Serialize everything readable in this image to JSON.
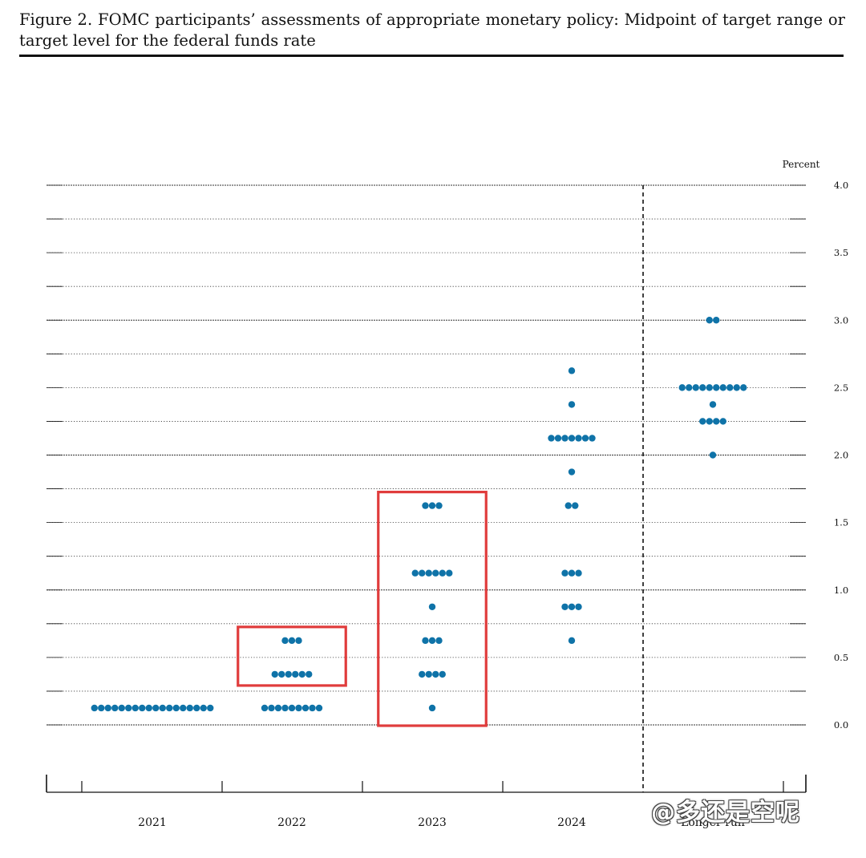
{
  "figure": {
    "title": "Figure 2.  FOMC participants’ assessments of appropriate monetary policy: Midpoint of target range or target level for the federal funds rate"
  },
  "watermark": "@多还是空呢",
  "colors": {
    "dot": "#0f73a8",
    "highlight_box": "#e03c3c",
    "axis": "#111111",
    "grid": "#333333"
  },
  "chart_data": {
    "type": "scatter",
    "style": "dot-plot",
    "unit_label": "Percent",
    "categories": [
      "2021",
      "2022",
      "2023",
      "2024",
      "Longer run"
    ],
    "ylim": [
      0,
      4.0
    ],
    "yticks": [
      "0.0",
      "0.5",
      "1.0",
      "1.5",
      "2.0",
      "2.5",
      "3.0",
      "3.5",
      "4.0"
    ],
    "grid": true,
    "longer_run_separator": true,
    "points": [
      {
        "category": "2021",
        "dots": [
          {
            "y": 0.125,
            "count": 18
          }
        ]
      },
      {
        "category": "2022",
        "dots": [
          {
            "y": 0.125,
            "count": 9
          },
          {
            "y": 0.375,
            "count": 6
          },
          {
            "y": 0.625,
            "count": 3
          }
        ]
      },
      {
        "category": "2023",
        "dots": [
          {
            "y": 0.125,
            "count": 1
          },
          {
            "y": 0.375,
            "count": 4
          },
          {
            "y": 0.625,
            "count": 3
          },
          {
            "y": 0.875,
            "count": 1
          },
          {
            "y": 1.125,
            "count": 6
          },
          {
            "y": 1.625,
            "count": 3
          }
        ]
      },
      {
        "category": "2024",
        "dots": [
          {
            "y": 0.625,
            "count": 1
          },
          {
            "y": 0.875,
            "count": 3
          },
          {
            "y": 1.125,
            "count": 3
          },
          {
            "y": 1.625,
            "count": 2
          },
          {
            "y": 1.875,
            "count": 1
          },
          {
            "y": 2.125,
            "count": 7
          },
          {
            "y": 2.375,
            "count": 1
          },
          {
            "y": 2.625,
            "count": 1
          }
        ]
      },
      {
        "category": "Longer run",
        "dots": [
          {
            "y": 2.0,
            "count": 1
          },
          {
            "y": 2.25,
            "count": 4
          },
          {
            "y": 2.375,
            "count": 1
          },
          {
            "y": 2.5,
            "count": 10
          },
          {
            "y": 3.0,
            "count": 2
          }
        ]
      }
    ],
    "highlights": [
      {
        "category": "2022",
        "y_range": [
          0.375,
          0.625
        ]
      },
      {
        "category": "2023",
        "y_range": [
          0.0,
          1.625
        ]
      }
    ]
  }
}
